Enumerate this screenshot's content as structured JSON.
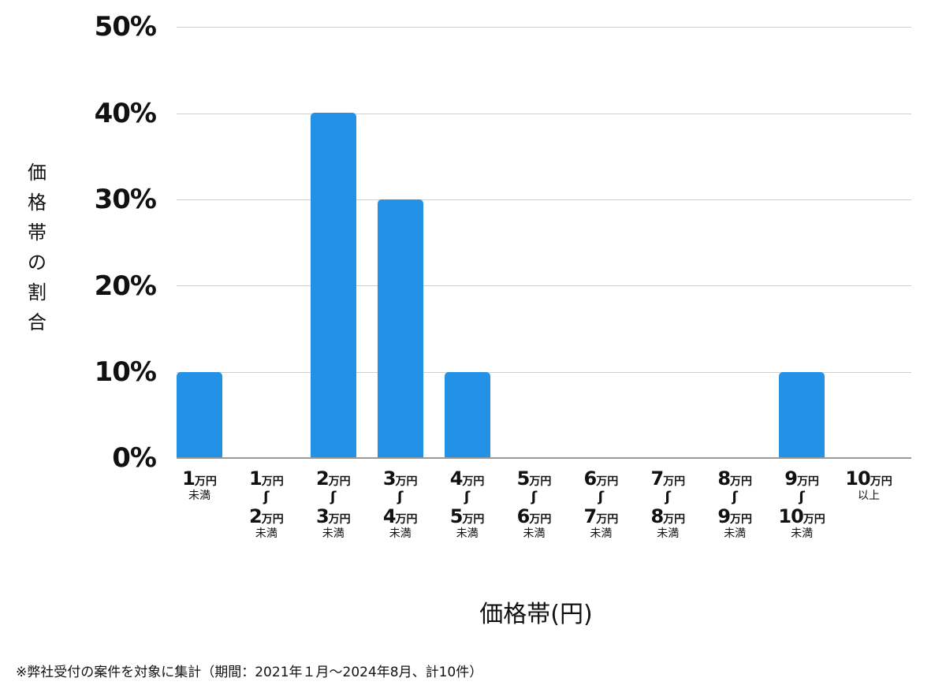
{
  "chart_data": {
    "type": "bar",
    "title": "",
    "xlabel": "価格帯(円)",
    "ylabel": "価格帯の割合",
    "ylim": [
      0,
      50
    ],
    "yticks": [
      "0%",
      "10%",
      "20%",
      "30%",
      "40%",
      "50%"
    ],
    "grid": true,
    "legend": null,
    "bar_color": "#2391e6",
    "categories": [
      "1万円未満",
      "1万円〜2万円未満",
      "2万円〜3万円未満",
      "3万円〜4万円未満",
      "4万円〜5万円未満",
      "5万円〜6万円未満",
      "6万円〜7万円未満",
      "7万円〜8万円未満",
      "8万円〜9万円未満",
      "9万円〜10万円未満",
      "10万円以上"
    ],
    "values": [
      10,
      0,
      40,
      30,
      10,
      0,
      0,
      0,
      0,
      10,
      0
    ],
    "unit": "%",
    "footnote": "※弊社受付の案件を対象に集計（期間：2021年１月〜2024年8月、計10件）"
  },
  "axis": {
    "y_ticks": {
      "t0": "0%",
      "t10": "10%",
      "t20": "20%",
      "t30": "30%",
      "t40": "40%",
      "t50": "50%"
    },
    "y_label_chars": [
      "価",
      "格",
      "帯",
      "の",
      "割",
      "合"
    ],
    "x_label": "価格帯(円)",
    "unit_label": "万円",
    "below_label": "未満",
    "above_label": "以上",
    "tilde": "〜"
  },
  "x_categories": [
    {
      "from": "1",
      "to": null,
      "suffix": "未満"
    },
    {
      "from": "1",
      "to": "2",
      "suffix": "未満"
    },
    {
      "from": "2",
      "to": "3",
      "suffix": "未満"
    },
    {
      "from": "3",
      "to": "4",
      "suffix": "未満"
    },
    {
      "from": "4",
      "to": "5",
      "suffix": "未満"
    },
    {
      "from": "5",
      "to": "6",
      "suffix": "未満"
    },
    {
      "from": "6",
      "to": "7",
      "suffix": "未満"
    },
    {
      "from": "7",
      "to": "8",
      "suffix": "未満"
    },
    {
      "from": "8",
      "to": "9",
      "suffix": "未満"
    },
    {
      "from": "9",
      "to": "10",
      "suffix": "未満"
    },
    {
      "from": "10",
      "to": null,
      "suffix": "以上"
    }
  ],
  "footnote": "※弊社受付の案件を対象に集計（期間：2021年１月〜2024年8月、計10件）"
}
